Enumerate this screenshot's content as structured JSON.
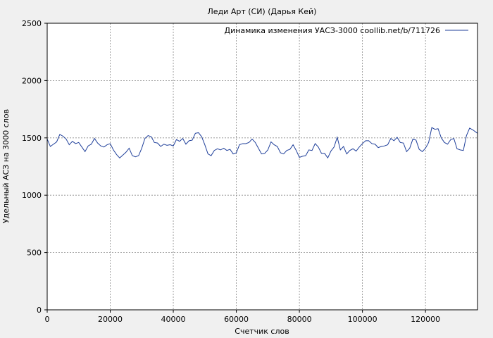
{
  "chart_data": {
    "type": "line",
    "title": "Леди Арт (СИ) (Дарья Кей)",
    "xlabel": "Счетчик слов",
    "ylabel": "Удельный АСЗ на 3000 слов",
    "xlim": [
      0,
      136500
    ],
    "ylim": [
      0,
      2500
    ],
    "xticks": [
      0,
      20000,
      40000,
      60000,
      80000,
      100000,
      120000
    ],
    "yticks": [
      0,
      500,
      1000,
      1500,
      2000,
      2500
    ],
    "grid": true,
    "legend_position": "top-right",
    "series": [
      {
        "name": "Динамика изменения УАСЗ-3000 coollib.net/b/711726",
        "color": "#1f3f9a",
        "x": [
          0,
          1000,
          2000,
          3000,
          4000,
          5000,
          6000,
          7000,
          8000,
          9000,
          10000,
          11000,
          12000,
          13000,
          14000,
          15000,
          16000,
          17000,
          18000,
          19000,
          20000,
          21000,
          22000,
          23000,
          24000,
          25000,
          26000,
          27000,
          28000,
          29000,
          30000,
          31000,
          32000,
          33000,
          34000,
          35000,
          36000,
          37000,
          38000,
          39000,
          40000,
          41000,
          42000,
          43000,
          44000,
          45000,
          46000,
          47000,
          48000,
          49000,
          50000,
          51000,
          52000,
          53000,
          54000,
          55000,
          56000,
          57000,
          58000,
          59000,
          60000,
          61000,
          62000,
          63000,
          64000,
          65000,
          66000,
          67000,
          68000,
          69000,
          70000,
          71000,
          72000,
          73000,
          74000,
          75000,
          76000,
          77000,
          78000,
          79000,
          80000,
          81000,
          82000,
          83000,
          84000,
          85000,
          86000,
          87000,
          88000,
          89000,
          90000,
          91000,
          92000,
          93000,
          94000,
          95000,
          96000,
          97000,
          98000,
          99000,
          100000,
          101000,
          102000,
          103000,
          104000,
          105000,
          106000,
          107000,
          108000,
          109000,
          110000,
          111000,
          112000,
          113000,
          114000,
          115000,
          116000,
          117000,
          118000,
          119000,
          120000,
          121000,
          122000,
          123000,
          124000,
          125000,
          126000,
          127000,
          128000,
          129000,
          130000,
          131000,
          132000,
          133000,
          134000,
          135000,
          136500
        ],
        "y": [
          1490,
          1425,
          1445,
          1465,
          1530,
          1515,
          1490,
          1440,
          1470,
          1450,
          1460,
          1420,
          1380,
          1430,
          1445,
          1495,
          1455,
          1430,
          1420,
          1440,
          1450,
          1395,
          1355,
          1325,
          1350,
          1375,
          1410,
          1345,
          1335,
          1345,
          1410,
          1495,
          1520,
          1510,
          1460,
          1455,
          1425,
          1445,
          1435,
          1440,
          1430,
          1485,
          1470,
          1495,
          1445,
          1475,
          1480,
          1540,
          1545,
          1510,
          1440,
          1360,
          1345,
          1390,
          1405,
          1395,
          1410,
          1390,
          1400,
          1360,
          1370,
          1440,
          1450,
          1450,
          1460,
          1490,
          1460,
          1410,
          1360,
          1365,
          1395,
          1465,
          1440,
          1425,
          1370,
          1360,
          1390,
          1400,
          1440,
          1390,
          1330,
          1340,
          1345,
          1395,
          1390,
          1450,
          1420,
          1365,
          1365,
          1325,
          1385,
          1420,
          1505,
          1395,
          1425,
          1360,
          1390,
          1405,
          1385,
          1420,
          1450,
          1475,
          1475,
          1450,
          1445,
          1415,
          1425,
          1430,
          1440,
          1495,
          1475,
          1505,
          1460,
          1455,
          1380,
          1410,
          1490,
          1480,
          1400,
          1380,
          1410,
          1460,
          1590,
          1575,
          1580,
          1500,
          1460,
          1445,
          1485,
          1495,
          1405,
          1395,
          1390,
          1520,
          1585,
          1570,
          1540
        ]
      }
    ]
  }
}
